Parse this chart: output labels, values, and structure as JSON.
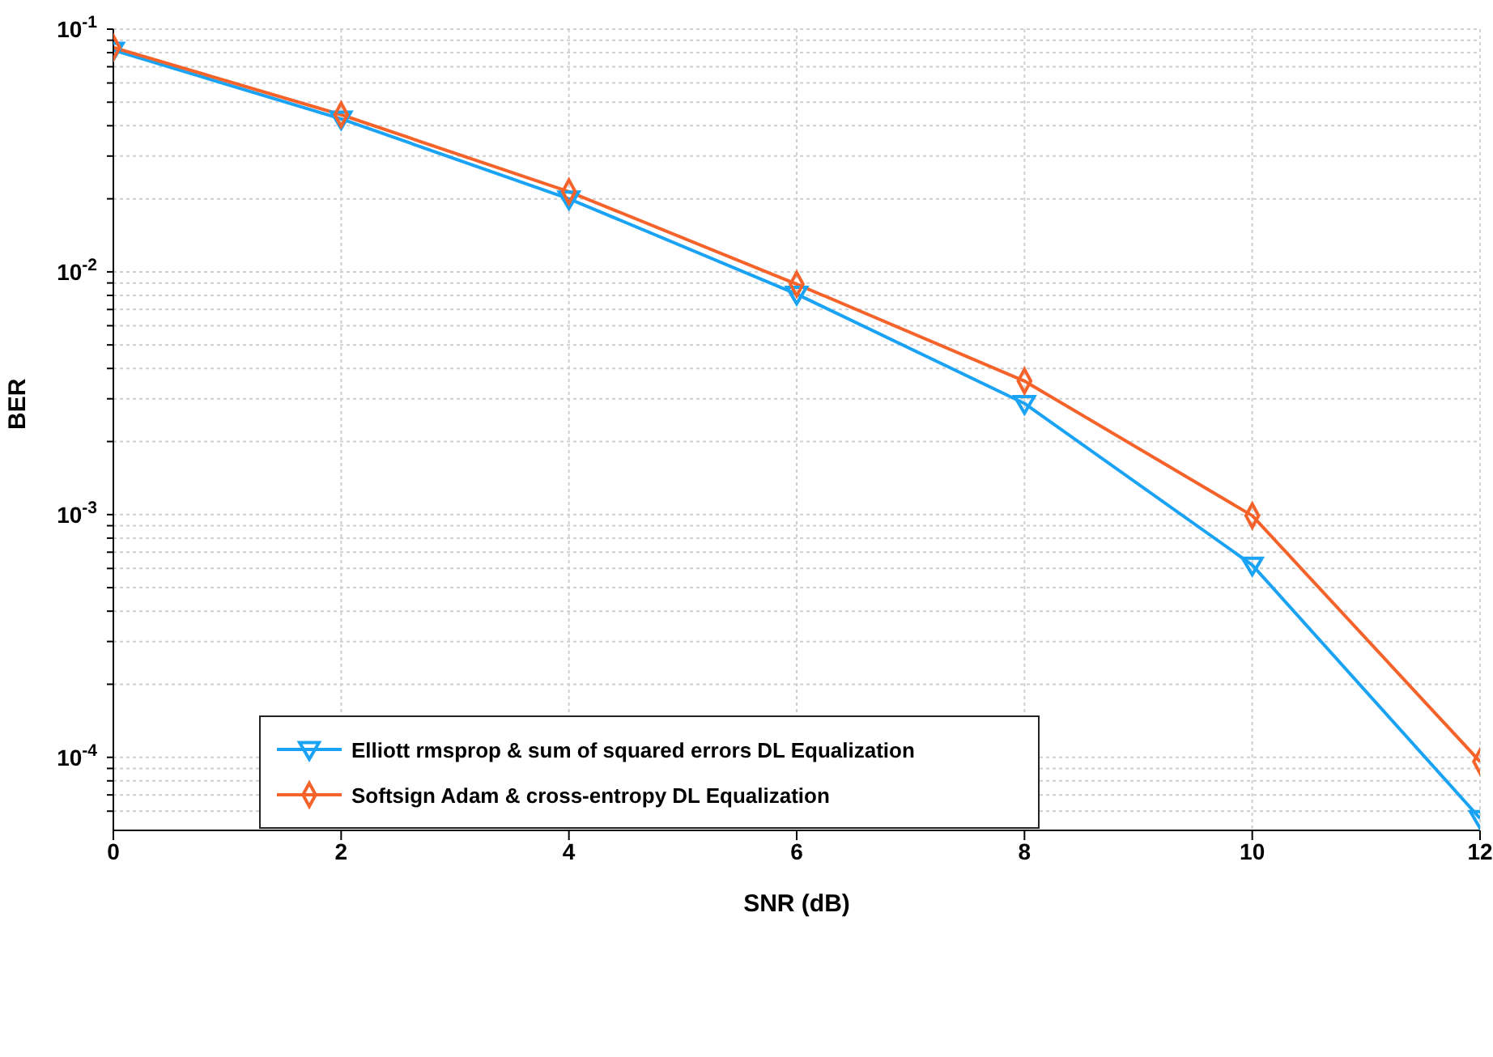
{
  "chart_data": {
    "type": "line",
    "xlabel": "SNR (dB)",
    "ylabel": "BER",
    "x": [
      0,
      2,
      4,
      6,
      8,
      10,
      12
    ],
    "series": [
      {
        "name": "Elliott rmsprop & sum of squared errors DL Equalization",
        "color": "#1aa3f5",
        "marker": "triangle",
        "values": [
          0.082,
          0.0427,
          0.02,
          0.0081,
          0.00287,
          0.00062,
          5.6e-05
        ]
      },
      {
        "name": "Softsign Adam & cross-entropy DL Equalization",
        "color": "#f5632a",
        "marker": "diamond",
        "values": [
          0.084,
          0.0444,
          0.0214,
          0.0089,
          0.00355,
          0.00099,
          9.6e-05
        ]
      }
    ],
    "log": "y",
    "xlim": [
      0,
      12
    ],
    "xticks": [
      0,
      2,
      4,
      6,
      8,
      10,
      12
    ],
    "ylim": [
      5e-05,
      0.1
    ],
    "yticks": [
      {
        "value": 6e-05,
        "label": null
      },
      {
        "value": 7e-05,
        "label": null
      },
      {
        "value": 8e-05,
        "label": null
      },
      {
        "value": 9e-05,
        "label": null
      },
      {
        "value": 0.0001,
        "label": "10$^{-4}$"
      },
      {
        "value": 0.0002,
        "label": null
      },
      {
        "value": 0.0003,
        "label": null
      },
      {
        "value": 0.0004,
        "label": null
      },
      {
        "value": 0.0005,
        "label": null
      },
      {
        "value": 0.0006,
        "label": null
      },
      {
        "value": 0.0007,
        "label": null
      },
      {
        "value": 0.0008,
        "label": null
      },
      {
        "value": 0.0009,
        "label": null
      },
      {
        "value": 0.001,
        "label": "10$^{-3}$"
      },
      {
        "value": 0.002,
        "label": null
      },
      {
        "value": 0.003,
        "label": null
      },
      {
        "value": 0.004,
        "label": null
      },
      {
        "value": 0.005,
        "label": null
      },
      {
        "value": 0.006,
        "label": null
      },
      {
        "value": 0.007,
        "label": null
      },
      {
        "value": 0.008,
        "label": null
      },
      {
        "value": 0.009,
        "label": null
      },
      {
        "value": 0.01,
        "label": "10$^{-2}$"
      },
      {
        "value": 0.02,
        "label": null
      },
      {
        "value": 0.03,
        "label": null
      },
      {
        "value": 0.04,
        "label": null
      },
      {
        "value": 0.05,
        "label": null
      },
      {
        "value": 0.06,
        "label": null
      },
      {
        "value": 0.07,
        "label": null
      },
      {
        "value": 0.08,
        "label": null
      },
      {
        "value": 0.09,
        "label": null
      },
      {
        "value": 0.1,
        "label": "10$^{-1}$"
      }
    ],
    "grid": true,
    "legend": "bottom left",
    "line_style": "solid"
  }
}
